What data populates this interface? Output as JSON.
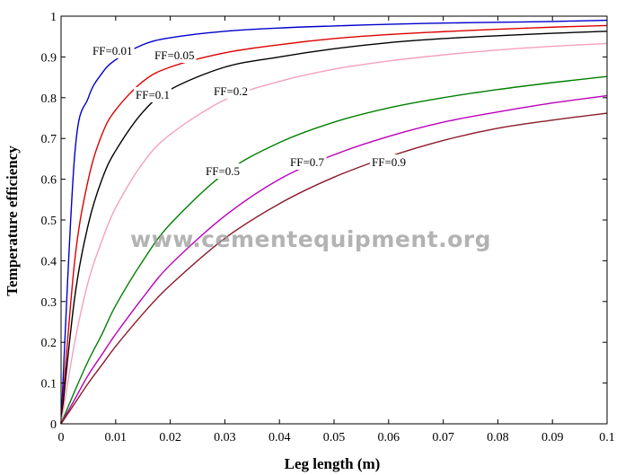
{
  "chart_data": {
    "type": "line",
    "xlabel": "Leg length (m)",
    "ylabel": "Temperature efficiency",
    "xlim": [
      0,
      0.1
    ],
    "ylim": [
      0,
      1
    ],
    "x_ticks": [
      "0",
      "0.01",
      "0.02",
      "0.03",
      "0.04",
      "0.05",
      "0.06",
      "0.07",
      "0.08",
      "0.09",
      "0.1"
    ],
    "y_ticks": [
      "0",
      "0.1",
      "0.2",
      "0.3",
      "0.4",
      "0.5",
      "0.6",
      "0.7",
      "0.8",
      "0.9",
      "1"
    ],
    "grid": false,
    "watermark": "www.cementequipment.org",
    "series": [
      {
        "name": "FF=0.01",
        "color": "#0000cc",
        "x": [
          0,
          0.0025,
          0.005,
          0.0075,
          0.01,
          0.015,
          0.02,
          0.03,
          0.04,
          0.05,
          0.06,
          0.07,
          0.08,
          0.09,
          0.1
        ],
        "y": [
          0,
          0.66,
          0.8,
          0.86,
          0.893,
          0.93,
          0.947,
          0.963,
          0.971,
          0.976,
          0.98,
          0.983,
          0.985,
          0.987,
          0.99
        ]
      },
      {
        "name": "FF=0.05",
        "color": "#dd0000",
        "x": [
          0,
          0.0025,
          0.005,
          0.0075,
          0.01,
          0.015,
          0.02,
          0.03,
          0.04,
          0.05,
          0.06,
          0.07,
          0.08,
          0.09,
          0.1
        ],
        "y": [
          0,
          0.4,
          0.6,
          0.71,
          0.77,
          0.84,
          0.875,
          0.91,
          0.93,
          0.945,
          0.955,
          0.962,
          0.968,
          0.973,
          0.977
        ]
      },
      {
        "name": "FF=0.1",
        "color": "#000000",
        "x": [
          0,
          0.0025,
          0.005,
          0.0075,
          0.01,
          0.015,
          0.02,
          0.03,
          0.04,
          0.05,
          0.06,
          0.07,
          0.08,
          0.09,
          0.1
        ],
        "y": [
          0,
          0.31,
          0.49,
          0.6,
          0.67,
          0.765,
          0.82,
          0.875,
          0.9,
          0.92,
          0.935,
          0.945,
          0.952,
          0.958,
          0.963
        ]
      },
      {
        "name": "FF=0.2",
        "color": "#f4a0c0",
        "x": [
          0,
          0.0025,
          0.005,
          0.0075,
          0.01,
          0.015,
          0.02,
          0.03,
          0.04,
          0.05,
          0.06,
          0.07,
          0.08,
          0.09,
          0.1
        ],
        "y": [
          0,
          0.2,
          0.35,
          0.45,
          0.53,
          0.64,
          0.71,
          0.795,
          0.84,
          0.87,
          0.89,
          0.905,
          0.917,
          0.926,
          0.933
        ]
      },
      {
        "name": "FF=0.5",
        "color": "#008000",
        "x": [
          0,
          0.0025,
          0.005,
          0.0075,
          0.01,
          0.015,
          0.02,
          0.03,
          0.04,
          0.05,
          0.06,
          0.07,
          0.08,
          0.09,
          0.1
        ],
        "y": [
          0,
          0.08,
          0.155,
          0.22,
          0.29,
          0.4,
          0.49,
          0.615,
          0.69,
          0.74,
          0.775,
          0.8,
          0.82,
          0.837,
          0.852
        ]
      },
      {
        "name": "FF=0.7",
        "color": "#bb00bb",
        "x": [
          0,
          0.0025,
          0.005,
          0.0075,
          0.01,
          0.015,
          0.02,
          0.03,
          0.04,
          0.05,
          0.06,
          0.07,
          0.08,
          0.09,
          0.1
        ],
        "y": [
          0,
          0.06,
          0.12,
          0.17,
          0.22,
          0.31,
          0.39,
          0.51,
          0.6,
          0.66,
          0.705,
          0.74,
          0.765,
          0.787,
          0.805
        ]
      },
      {
        "name": "FF=0.9",
        "color": "#8b1a2a",
        "x": [
          0,
          0.0025,
          0.005,
          0.0075,
          0.01,
          0.015,
          0.02,
          0.03,
          0.04,
          0.05,
          0.06,
          0.07,
          0.08,
          0.09,
          0.1
        ],
        "y": [
          0,
          0.05,
          0.1,
          0.145,
          0.19,
          0.27,
          0.34,
          0.455,
          0.54,
          0.605,
          0.655,
          0.695,
          0.725,
          0.745,
          0.762
        ]
      }
    ]
  }
}
